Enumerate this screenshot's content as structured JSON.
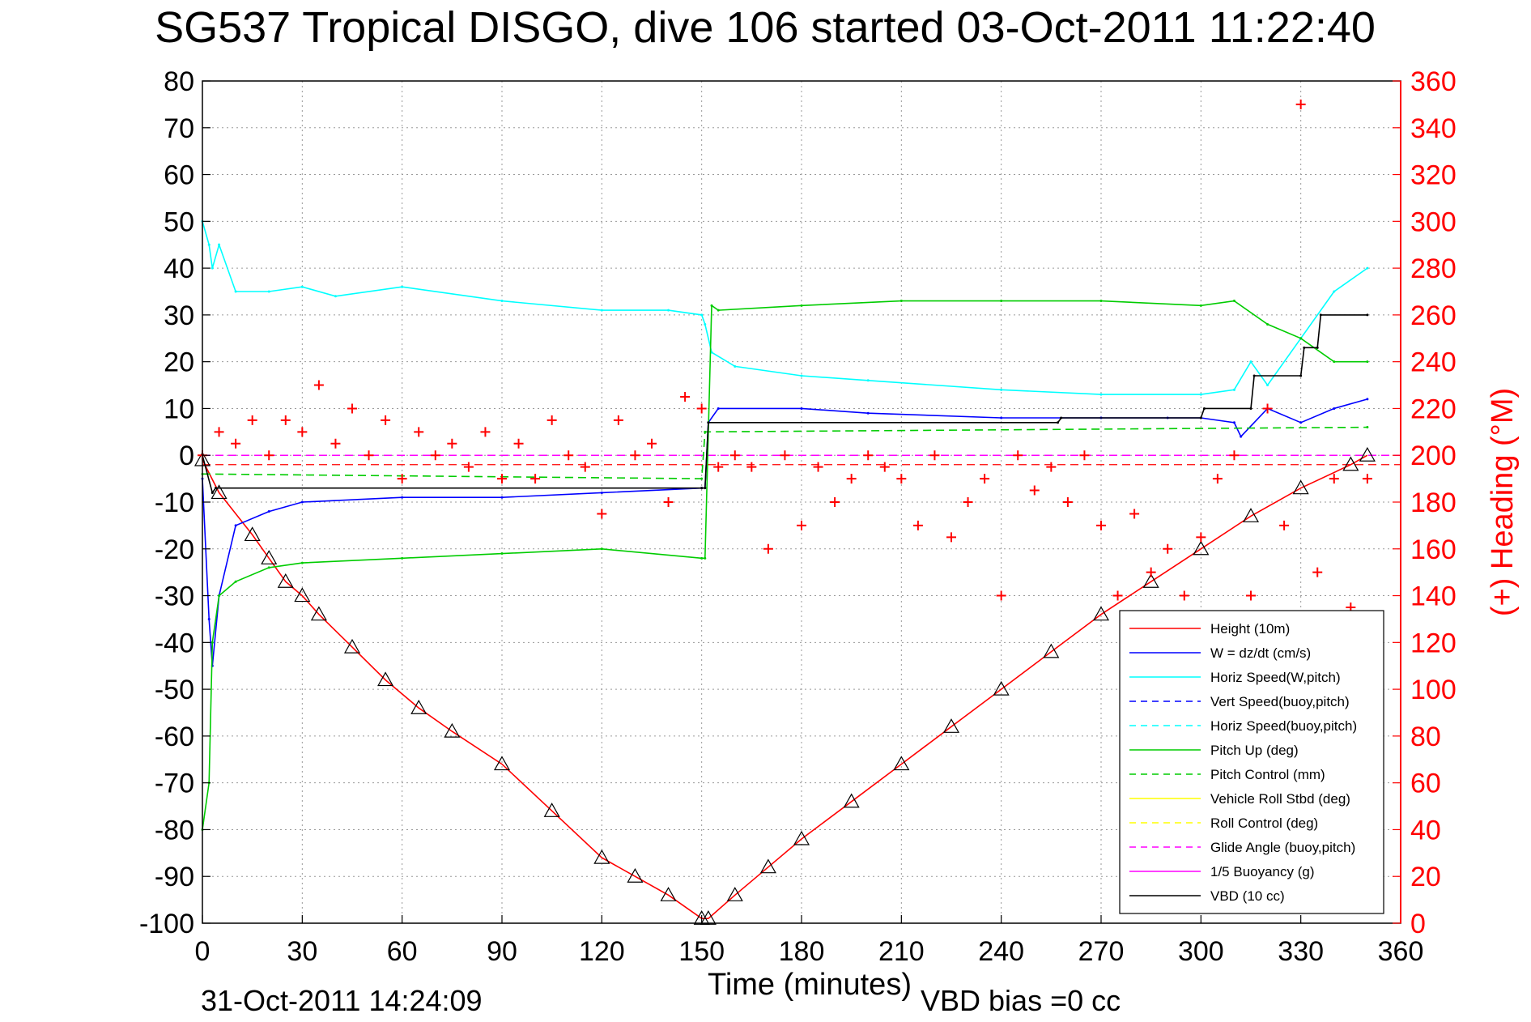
{
  "chart_data": {
    "type": "line",
    "title": "SG537 Tropical DISGO, dive 106 started 03-Oct-2011 11:22:40",
    "xlabel": "Time (minutes)",
    "ylabel_right": "(+) Heading (°M)",
    "xlim": [
      0,
      360
    ],
    "ylim": [
      -100,
      80
    ],
    "ylim_right": [
      0,
      360
    ],
    "x_ticks": [
      "0",
      "30",
      "60",
      "90",
      "120",
      "150",
      "180",
      "210",
      "240",
      "270",
      "300",
      "330",
      "360"
    ],
    "y_ticks": [
      "80",
      "70",
      "60",
      "50",
      "40",
      "30",
      "20",
      "10",
      "0",
      "-10",
      "-20",
      "-30",
      "-40",
      "-50",
      "-60",
      "-70",
      "-80",
      "-90",
      "-100"
    ],
    "y_ticks_right": [
      "360",
      "340",
      "320",
      "300",
      "280",
      "260",
      "240",
      "220",
      "200",
      "180",
      "160",
      "140",
      "120",
      "100",
      "80",
      "60",
      "40",
      "20",
      "0"
    ],
    "grid": true,
    "legend_position": "lower-right",
    "footer_left": "31-Oct-2011 14:24:09",
    "footer_right": "VBD bias =0 cc",
    "legend": [
      {
        "label": "Height (10m)",
        "color": "#ff0000",
        "dash": "solid"
      },
      {
        "label": "W = dz/dt (cm/s)",
        "color": "#0000ff",
        "dash": "solid"
      },
      {
        "label": "Horiz Speed(W,pitch)",
        "color": "#00ffff",
        "dash": "solid"
      },
      {
        "label": "Vert Speed(buoy,pitch)",
        "color": "#0000ff",
        "dash": "dashed"
      },
      {
        "label": "Horiz Speed(buoy,pitch)",
        "color": "#00ffff",
        "dash": "dashed"
      },
      {
        "label": "Pitch Up (deg)",
        "color": "#00cc00",
        "dash": "solid"
      },
      {
        "label": "Pitch Control (mm)",
        "color": "#00cc00",
        "dash": "dashed"
      },
      {
        "label": "Vehicle Roll Stbd (deg)",
        "color": "#ffff00",
        "dash": "solid"
      },
      {
        "label": "Roll Control (deg)",
        "color": "#ffff00",
        "dash": "dashed"
      },
      {
        "label": "Glide Angle (buoy,pitch)",
        "color": "#ff00ff",
        "dash": "dashed"
      },
      {
        "label": "1/5 Buoyancy (g)",
        "color": "#ff00ff",
        "dash": "solid"
      },
      {
        "label": "VBD (10 cc)",
        "color": "#000000",
        "dash": "solid"
      }
    ],
    "series": [
      {
        "name": "Height (10m)",
        "color": "#ff0000",
        "marker": "triangle",
        "x": [
          0,
          5,
          15,
          20,
          25,
          30,
          35,
          45,
          55,
          65,
          75,
          90,
          105,
          120,
          130,
          140,
          150,
          152,
          160,
          170,
          180,
          195,
          210,
          225,
          240,
          255,
          270,
          285,
          300,
          315,
          330,
          345,
          350
        ],
        "y": [
          -1,
          -8,
          -17,
          -22,
          -27,
          -30,
          -34,
          -41,
          -48,
          -54,
          -59,
          -66,
          -76,
          -86,
          -90,
          -94,
          -99,
          -99,
          -94,
          -88,
          -82,
          -74,
          -66,
          -58,
          -50,
          -42,
          -34,
          -27,
          -20,
          -13,
          -7,
          -2,
          0
        ]
      },
      {
        "name": "W = dz/dt (cm/s)",
        "color": "#0000ff",
        "x": [
          0,
          2,
          3,
          5,
          10,
          20,
          30,
          60,
          90,
          120,
          150,
          151,
          152,
          155,
          180,
          200,
          240,
          270,
          290,
          300,
          310,
          312,
          320,
          330,
          340,
          350
        ],
        "y": [
          -5,
          -35,
          -45,
          -30,
          -15,
          -12,
          -10,
          -9,
          -9,
          -8,
          -7,
          -7,
          7,
          10,
          10,
          9,
          8,
          8,
          8,
          8,
          7,
          4,
          10,
          7,
          10,
          12
        ]
      },
      {
        "name": "Horiz Speed(W,pitch)",
        "color": "#00ffff",
        "x": [
          0,
          2,
          3,
          5,
          10,
          20,
          30,
          40,
          60,
          90,
          120,
          140,
          150,
          151,
          153,
          160,
          180,
          200,
          240,
          270,
          300,
          310,
          315,
          320,
          330,
          340,
          350
        ],
        "y": [
          50,
          45,
          40,
          45,
          35,
          35,
          36,
          34,
          36,
          33,
          31,
          31,
          30,
          28,
          22,
          19,
          17,
          16,
          14,
          13,
          13,
          14,
          20,
          15,
          25,
          35,
          40
        ]
      },
      {
        "name": "Pitch Up (deg)",
        "color": "#00cc00",
        "x": [
          0,
          2,
          3,
          5,
          10,
          20,
          30,
          60,
          90,
          120,
          150,
          151,
          153,
          155,
          180,
          210,
          240,
          270,
          300,
          310,
          320,
          330,
          340,
          350
        ],
        "y": [
          -80,
          -70,
          -40,
          -30,
          -27,
          -24,
          -23,
          -22,
          -21,
          -20,
          -22,
          -22,
          32,
          31,
          32,
          33,
          33,
          33,
          32,
          33,
          28,
          25,
          20,
          20
        ]
      },
      {
        "name": "Pitch Control (mm)",
        "color": "#00cc00",
        "dash": "dashed",
        "x": [
          0,
          150,
          151,
          350
        ],
        "y": [
          -4,
          -5,
          5,
          6
        ]
      },
      {
        "name": "VBD (10 cc)",
        "color": "#000000",
        "x": [
          0,
          3,
          4,
          150,
          151,
          152,
          257,
          258,
          300,
          301,
          315,
          316,
          330,
          331,
          335,
          336,
          350
        ],
        "y": [
          0,
          -8,
          -7,
          -7,
          -7,
          7,
          7,
          8,
          8,
          10,
          10,
          17,
          17,
          23,
          23,
          30,
          30
        ]
      },
      {
        "name": "(+) Heading (°M)",
        "color": "#ff0000",
        "marker": "plus",
        "axis": "right",
        "x": [
          0,
          5,
          10,
          15,
          20,
          25,
          30,
          35,
          40,
          45,
          50,
          55,
          60,
          65,
          70,
          75,
          80,
          85,
          90,
          95,
          100,
          105,
          110,
          115,
          120,
          125,
          130,
          135,
          140,
          145,
          150,
          155,
          160,
          165,
          170,
          175,
          180,
          185,
          190,
          195,
          200,
          205,
          210,
          215,
          220,
          225,
          230,
          235,
          240,
          245,
          250,
          255,
          260,
          265,
          270,
          275,
          280,
          285,
          290,
          295,
          300,
          305,
          310,
          315,
          320,
          325,
          330,
          335,
          340,
          345,
          350
        ],
        "y": [
          200,
          210,
          205,
          215,
          200,
          215,
          210,
          230,
          205,
          220,
          200,
          215,
          190,
          210,
          200,
          205,
          195,
          210,
          190,
          205,
          190,
          215,
          200,
          195,
          175,
          215,
          200,
          205,
          180,
          225,
          220,
          195,
          200,
          195,
          160,
          200,
          170,
          195,
          180,
          190,
          200,
          195,
          190,
          170,
          200,
          165,
          180,
          190,
          140,
          200,
          185,
          195,
          180,
          200,
          170,
          140,
          175,
          150,
          160,
          140,
          165,
          190,
          200,
          140,
          220,
          170,
          350,
          150,
          190,
          135,
          190
        ]
      }
    ]
  }
}
